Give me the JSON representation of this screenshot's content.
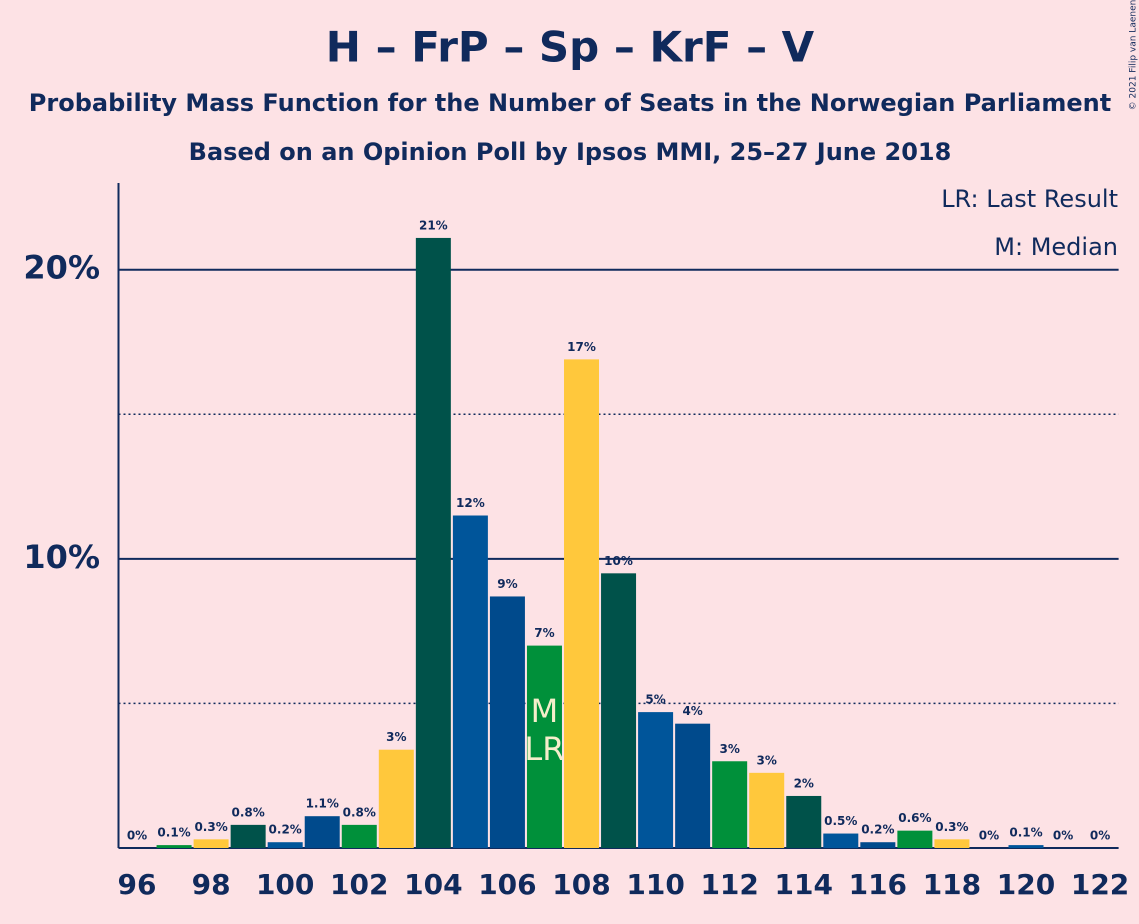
{
  "chart_data": {
    "type": "bar",
    "title": "H – FrP – Sp – KrF – V",
    "subtitle": "Probability Mass Function for the Number of Seats in the Norwegian Parliament",
    "subtitle2": "Based on an Opinion Poll by Ipsos MMI, 25–27 June 2018",
    "copyright": "© 2021 Filip van Laenen",
    "legend": [
      "LR: Last Result",
      "M: Median"
    ],
    "categories": [
      96,
      null,
      98,
      null,
      100,
      null,
      102,
      null,
      104,
      null,
      106,
      null,
      108,
      null,
      110,
      null,
      112,
      null,
      114,
      null,
      116,
      null,
      118,
      null,
      120,
      null,
      122
    ],
    "values": [
      0,
      0.1,
      0.3,
      0.8,
      0.2,
      1.1,
      0.8,
      3.4,
      21.1,
      11.5,
      8.7,
      7.0,
      16.9,
      9.5,
      4.7,
      4.3,
      3.0,
      2.6,
      1.8,
      0.5,
      0.2,
      0.6,
      0.3,
      0,
      0.1,
      0,
      0
    ],
    "value_labels": [
      "0%",
      "0.1%",
      "0.3%",
      "0.8%",
      "0.2%",
      "1.1%",
      "0.8%",
      "3%",
      "21%",
      "12%",
      "9%",
      "7%",
      "17%",
      "10%",
      "5%",
      "4%",
      "3%",
      "3%",
      "2%",
      "0.5%",
      "0.2%",
      "0.6%",
      "0.3%",
      "0%",
      "0.1%",
      "0%",
      "0%"
    ],
    "colors": [
      "#004a8c",
      "#00903a",
      "#ffc83c",
      "#00524a",
      "#00559a",
      "#004a8c",
      "#00903a",
      "#ffc83c",
      "#00524a",
      "#00559a",
      "#004a8c",
      "#00903a",
      "#ffc83c",
      "#00524a",
      "#00559a",
      "#004a8c",
      "#00903a",
      "#ffc83c",
      "#00524a",
      "#00559a",
      "#004a8c",
      "#00903a",
      "#ffc83c",
      "#00524a",
      "#00559a",
      "#004a8c",
      "#00903a"
    ],
    "median": 11,
    "median_label": "M",
    "last_result": 11,
    "last_result_label": "LR",
    "ylim": [
      0,
      23
    ],
    "yticks": [
      {
        "value": 10,
        "label": "10%"
      },
      {
        "value": 20,
        "label": "20%"
      }
    ],
    "minor_yticks": [
      5,
      15
    ],
    "grid": true
  }
}
